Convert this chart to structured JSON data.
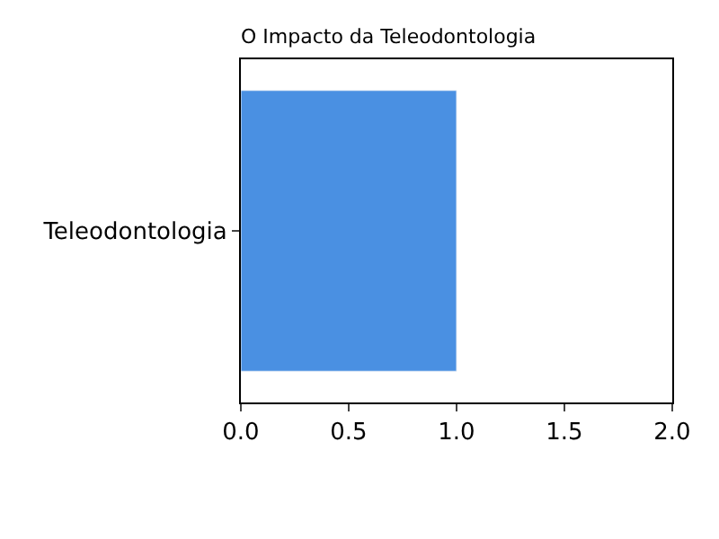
{
  "chart_data": {
    "type": "bar",
    "orientation": "horizontal",
    "title": "O Impacto da Teleodontologia",
    "categories": [
      "Teleodontologia"
    ],
    "values": [
      1.0
    ],
    "color": "#4a90e2",
    "xlim": [
      0,
      2
    ],
    "xticks": [
      {
        "value": 0,
        "label": "0.0"
      },
      0.5,
      {
        "value": 1,
        "label": "1.0"
      },
      1.5,
      {
        "value": 2,
        "label": "2.0"
      }
    ]
  }
}
